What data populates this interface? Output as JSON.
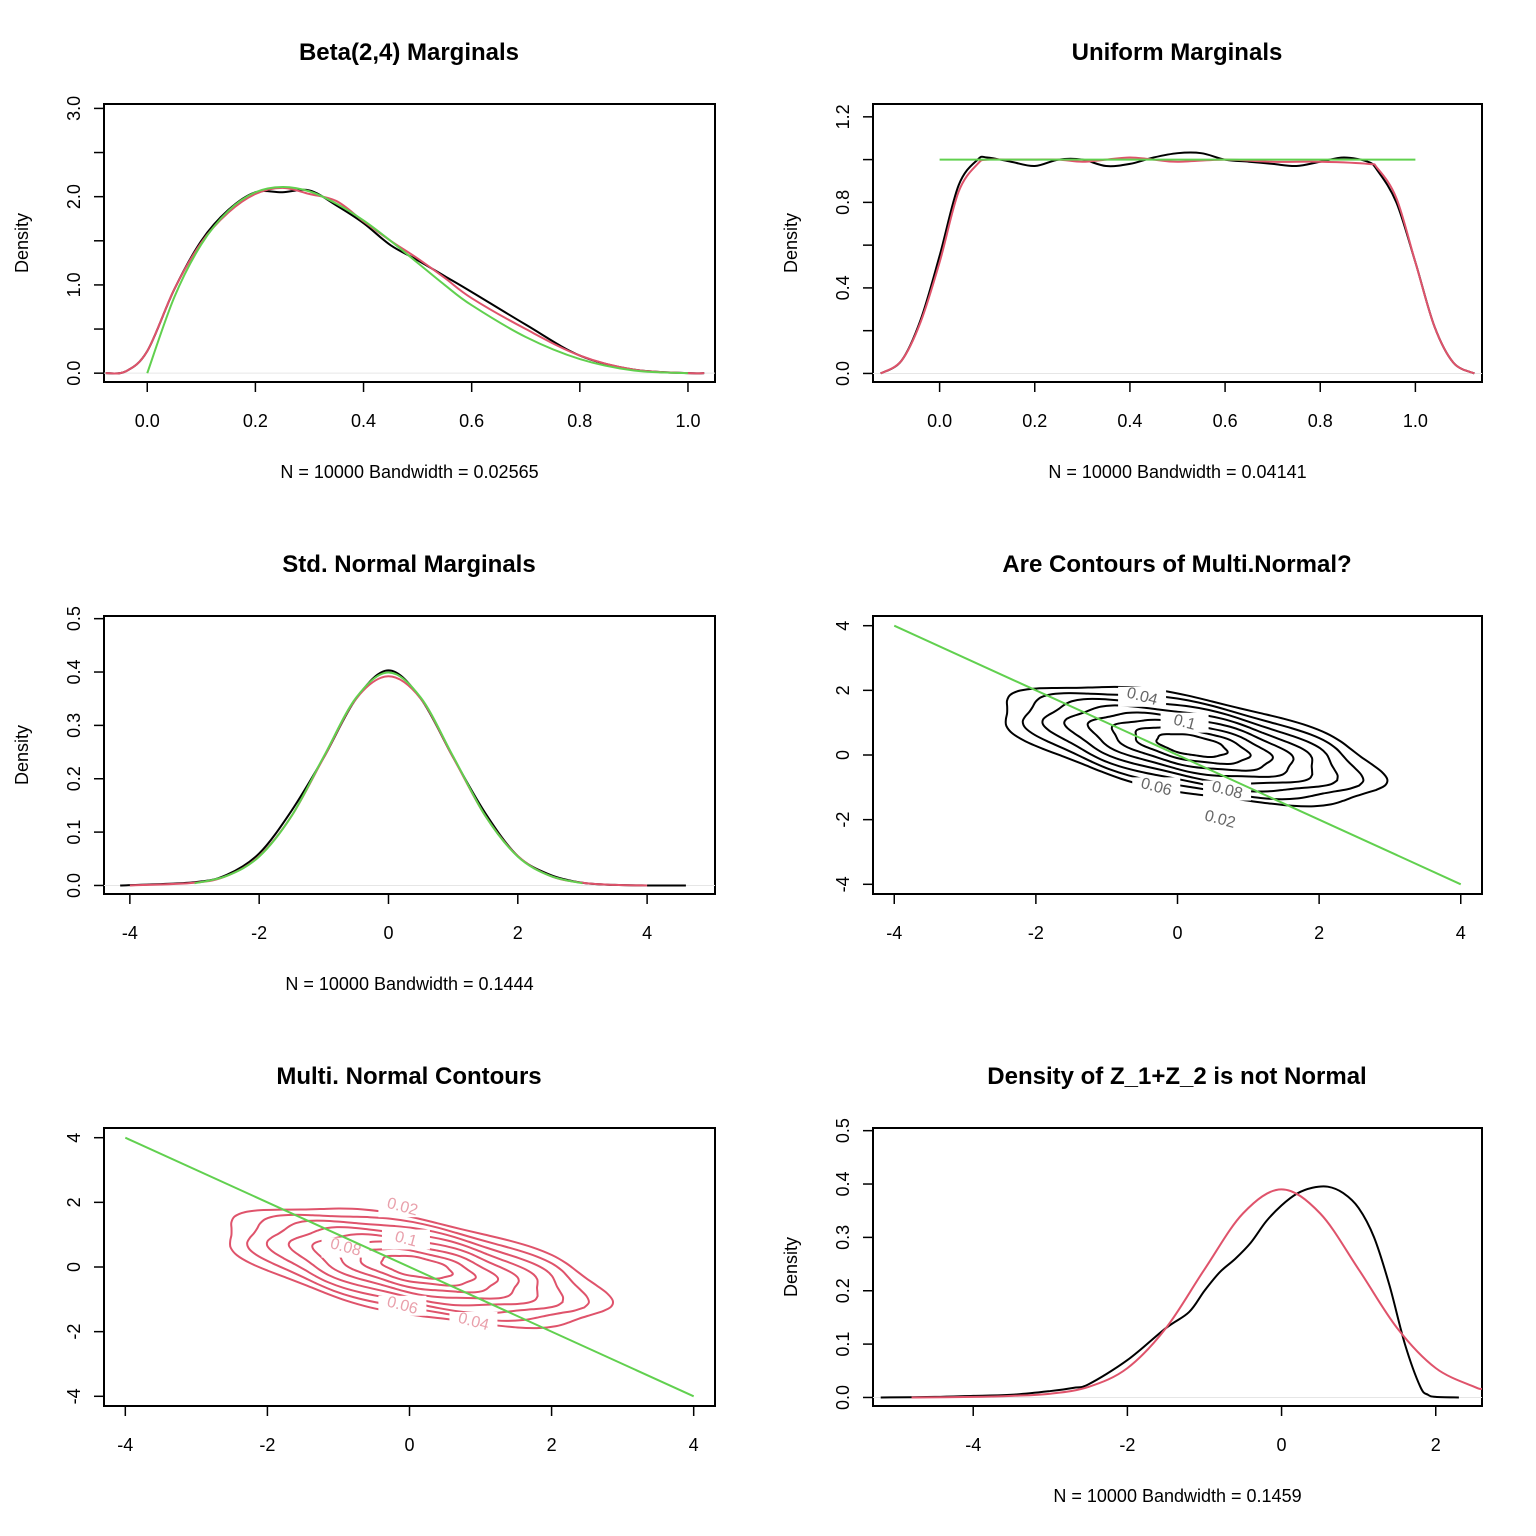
{
  "colors": {
    "kde": "#000000",
    "ref_red": "#DF536B",
    "ref_green": "#61D04F",
    "contour_label_black": "#666666",
    "contour_label_red": "#E9A0AB"
  },
  "chart_data": [
    {
      "type": "line",
      "title": "Beta(2,4) Marginals",
      "xlabel": "N = 10000   Bandwidth = 0.02565",
      "ylabel": "Density",
      "xlim": [
        -0.08,
        1.05
      ],
      "ylim": [
        -0.1,
        3.05
      ],
      "xticks": [
        "0.0",
        "0.2",
        "0.4",
        "0.6",
        "0.8",
        "1.0"
      ],
      "xtick_values": [
        0,
        0.2,
        0.4,
        0.6,
        0.8,
        1.0
      ],
      "yticks": [
        "0.0",
        "1.0",
        "2.0",
        "3.0"
      ],
      "ytick_values": [
        0,
        1,
        2,
        3
      ],
      "yminor": [
        0.5,
        1.5,
        2.5
      ],
      "series": [
        {
          "name": "kde-sample",
          "color": "kde",
          "x": [
            -0.077,
            -0.04,
            0,
            0.05,
            0.1,
            0.15,
            0.2,
            0.25,
            0.3,
            0.35,
            0.4,
            0.45,
            0.5,
            0.55,
            0.6,
            0.7,
            0.8,
            0.9,
            1.0,
            1.03
          ],
          "y": [
            0,
            0.02,
            0.25,
            0.95,
            1.5,
            1.85,
            2.05,
            2.05,
            2.07,
            1.9,
            1.7,
            1.45,
            1.28,
            1.1,
            0.92,
            0.55,
            0.2,
            0.04,
            0,
            0
          ]
        },
        {
          "name": "kde-reference",
          "color": "ref_red",
          "x": [
            -0.077,
            -0.04,
            0,
            0.05,
            0.1,
            0.15,
            0.2,
            0.25,
            0.3,
            0.35,
            0.4,
            0.45,
            0.5,
            0.55,
            0.6,
            0.7,
            0.8,
            0.9,
            1.0,
            1.03
          ],
          "y": [
            0,
            0.02,
            0.25,
            0.95,
            1.48,
            1.82,
            2.03,
            2.1,
            2.03,
            1.95,
            1.72,
            1.5,
            1.3,
            1.08,
            0.85,
            0.5,
            0.2,
            0.04,
            0,
            0
          ]
        },
        {
          "name": "beta-density",
          "color": "ref_green",
          "x": [
            0,
            0.05,
            0.1,
            0.15,
            0.2,
            0.25,
            0.3,
            0.35,
            0.4,
            0.45,
            0.5,
            0.55,
            0.6,
            0.7,
            0.8,
            0.9,
            1.0
          ],
          "y": [
            0,
            0.86,
            1.46,
            1.84,
            2.05,
            2.11,
            2.06,
            1.92,
            1.73,
            1.5,
            1.25,
            1.0,
            0.77,
            0.41,
            0.16,
            0.03,
            0
          ]
        }
      ]
    },
    {
      "type": "line",
      "title": "Uniform Marginals",
      "xlabel": "N = 10000   Bandwidth = 0.04141",
      "ylabel": "Density",
      "xlim": [
        -0.14,
        1.14
      ],
      "ylim": [
        -0.04,
        1.26
      ],
      "xticks": [
        "0.0",
        "0.2",
        "0.4",
        "0.6",
        "0.8",
        "1.0"
      ],
      "xtick_values": [
        0,
        0.2,
        0.4,
        0.6,
        0.8,
        1.0
      ],
      "yticks": [
        "0.0",
        "0.4",
        "0.8",
        "1.2"
      ],
      "ytick_values": [
        0,
        0.4,
        0.8,
        1.2
      ],
      "yminor": [
        0.2,
        0.6,
        1.0
      ],
      "series": [
        {
          "name": "kde-sample",
          "color": "kde",
          "x": [
            -0.124,
            -0.08,
            -0.04,
            0,
            0.04,
            0.08,
            0.1,
            0.15,
            0.2,
            0.25,
            0.3,
            0.35,
            0.4,
            0.45,
            0.5,
            0.55,
            0.6,
            0.65,
            0.7,
            0.75,
            0.8,
            0.85,
            0.9,
            0.92,
            0.96,
            1.0,
            1.04,
            1.08,
            1.124
          ],
          "y": [
            0,
            0.06,
            0.25,
            0.55,
            0.88,
            1.0,
            1.01,
            0.99,
            0.97,
            1.0,
            1.0,
            0.97,
            0.98,
            1.01,
            1.03,
            1.03,
            1.0,
            0.99,
            0.98,
            0.97,
            0.99,
            1.01,
            0.99,
            0.95,
            0.8,
            0.52,
            0.22,
            0.05,
            0
          ]
        },
        {
          "name": "kde-reference",
          "color": "ref_red",
          "x": [
            -0.124,
            -0.08,
            -0.04,
            0,
            0.04,
            0.08,
            0.1,
            0.15,
            0.2,
            0.25,
            0.3,
            0.35,
            0.4,
            0.45,
            0.5,
            0.6,
            0.7,
            0.8,
            0.9,
            0.92,
            0.96,
            1.0,
            1.04,
            1.08,
            1.124
          ],
          "y": [
            0,
            0.06,
            0.24,
            0.52,
            0.85,
            0.98,
            1.0,
            1.0,
            1.0,
            1.0,
            0.99,
            1.0,
            1.01,
            1.0,
            0.99,
            1.0,
            0.99,
            0.99,
            0.98,
            0.96,
            0.82,
            0.52,
            0.22,
            0.05,
            0
          ]
        },
        {
          "name": "uniform-density",
          "color": "ref_green",
          "x": [
            0,
            1
          ],
          "y": [
            1,
            1
          ]
        }
      ]
    },
    {
      "type": "line",
      "title": "Std. Normal Marginals",
      "xlabel": "N = 10000   Bandwidth = 0.1444",
      "ylabel": "Density",
      "xlim": [
        -4.4,
        5.05
      ],
      "ylim": [
        -0.016,
        0.505
      ],
      "xticks": [
        "-4",
        "-2",
        "0",
        "2",
        "4"
      ],
      "xtick_values": [
        -4,
        -2,
        0,
        2,
        4
      ],
      "yticks": [
        "0.0",
        "0.1",
        "0.2",
        "0.3",
        "0.4",
        "0.5"
      ],
      "ytick_values": [
        0,
        0.1,
        0.2,
        0.3,
        0.4,
        0.5
      ],
      "yminor": [],
      "series": [
        {
          "name": "kde-sample",
          "color": "kde",
          "x": [
            -4.15,
            -3,
            -2.5,
            -2,
            -1.5,
            -1,
            -0.5,
            0,
            0.5,
            1,
            1.5,
            2,
            2.5,
            3,
            3.5,
            4,
            4.6
          ],
          "y": [
            0,
            0.006,
            0.02,
            0.06,
            0.14,
            0.24,
            0.35,
            0.403,
            0.35,
            0.24,
            0.135,
            0.055,
            0.02,
            0.005,
            0.001,
            0,
            0
          ]
        },
        {
          "name": "kde-reference",
          "color": "ref_red",
          "x": [
            -4,
            -3,
            -2.5,
            -2,
            -1.5,
            -1,
            -0.5,
            0,
            0.5,
            1,
            1.5,
            2,
            2.5,
            3,
            3.5,
            4
          ],
          "y": [
            0,
            0.005,
            0.018,
            0.055,
            0.13,
            0.24,
            0.35,
            0.392,
            0.35,
            0.24,
            0.13,
            0.055,
            0.018,
            0.005,
            0.001,
            0
          ]
        },
        {
          "name": "normal-density",
          "color": "ref_green",
          "x": [
            -3,
            -2.5,
            -2,
            -1.5,
            -1,
            -0.5,
            0,
            0.5,
            1,
            1.5,
            2,
            2.5,
            3
          ],
          "y": [
            0.004,
            0.018,
            0.054,
            0.13,
            0.242,
            0.352,
            0.399,
            0.352,
            0.242,
            0.13,
            0.054,
            0.018,
            0.004
          ]
        }
      ]
    },
    {
      "type": "contour",
      "title": "Are Contours of Multi.Normal?",
      "xlabel": "",
      "ylabel": "",
      "xlim": [
        -4.3,
        4.3
      ],
      "ylim": [
        -4.3,
        4.3
      ],
      "xticks": [
        "-4",
        "-2",
        "0",
        "2",
        "4"
      ],
      "xtick_values": [
        -4,
        -2,
        0,
        2,
        4
      ],
      "yticks": [
        "-4",
        "-2",
        "0",
        "2",
        "4"
      ],
      "ytick_values": [
        -4,
        -2,
        0,
        2,
        4
      ],
      "yminor": [],
      "line_color": "kde",
      "label_color": "contour_label_black",
      "center": [
        0.2,
        0.3
      ],
      "levels": [
        0.02,
        0.04,
        0.06,
        0.08,
        0.1,
        0.12,
        0.14,
        0.16
      ],
      "labels": [
        {
          "text": "0.04",
          "x": -0.5,
          "y": 1.8
        },
        {
          "text": "0.1",
          "x": 0.1,
          "y": 1.0
        },
        {
          "text": "0.06",
          "x": -0.3,
          "y": -1.0
        },
        {
          "text": "0.08",
          "x": 0.7,
          "y": -1.1
        },
        {
          "text": "0.02",
          "x": 0.6,
          "y": -2.0
        }
      ],
      "line": {
        "color": "ref_green",
        "x": [
          -4,
          4
        ],
        "y": [
          4,
          -4
        ]
      }
    },
    {
      "type": "contour",
      "title": "Multi. Normal Contours",
      "xlabel": "",
      "ylabel": "",
      "xlim": [
        -4.3,
        4.3
      ],
      "ylim": [
        -4.3,
        4.3
      ],
      "xticks": [
        "-4",
        "-2",
        "0",
        "2",
        "4"
      ],
      "xtick_values": [
        -4,
        -2,
        0,
        2,
        4
      ],
      "yticks": [
        "-4",
        "-2",
        "0",
        "2",
        "4"
      ],
      "ytick_values": [
        -4,
        -2,
        0,
        2,
        4
      ],
      "yminor": [],
      "line_color": "ref_red",
      "label_color": "contour_label_red",
      "center": [
        0.1,
        0.0
      ],
      "levels": [
        0.02,
        0.04,
        0.06,
        0.08,
        0.1,
        0.12,
        0.14,
        0.16
      ],
      "labels": [
        {
          "text": "0.02",
          "x": -0.1,
          "y": 1.85
        },
        {
          "text": "0.1",
          "x": -0.05,
          "y": 0.85
        },
        {
          "text": "0.08",
          "x": -0.9,
          "y": 0.6
        },
        {
          "text": "0.06",
          "x": -0.1,
          "y": -1.2
        },
        {
          "text": "0.04",
          "x": 0.9,
          "y": -1.7
        }
      ],
      "line": {
        "color": "ref_green",
        "x": [
          -4,
          4
        ],
        "y": [
          4,
          -4
        ]
      }
    },
    {
      "type": "line",
      "title": "Density of Z_1+Z_2 is not Normal",
      "xlabel": "N = 10000   Bandwidth = 0.1459",
      "ylabel": "Density",
      "xlim": [
        -5.3,
        2.6
      ],
      "ylim": [
        -0.016,
        0.505
      ],
      "xticks": [
        "-4",
        "-2",
        "0",
        "2"
      ],
      "xtick_values": [
        -4,
        -2,
        0,
        2
      ],
      "yticks": [
        "0.0",
        "0.1",
        "0.2",
        "0.3",
        "0.4",
        "0.5"
      ],
      "ytick_values": [
        0,
        0.1,
        0.2,
        0.3,
        0.4,
        0.5
      ],
      "yminor": [],
      "series": [
        {
          "name": "kde-sample",
          "color": "kde",
          "x": [
            -5.2,
            -4.5,
            -4,
            -3.5,
            -3,
            -2.7,
            -2.5,
            -2,
            -1.5,
            -1.2,
            -1,
            -0.8,
            -0.6,
            -0.4,
            -0.2,
            0,
            0.2,
            0.4,
            0.6,
            0.8,
            1.0,
            1.2,
            1.4,
            1.6,
            1.8,
            1.9,
            2.0,
            2.3
          ],
          "y": [
            0,
            0.001,
            0.003,
            0.005,
            0.012,
            0.018,
            0.025,
            0.07,
            0.13,
            0.16,
            0.2,
            0.235,
            0.26,
            0.29,
            0.33,
            0.36,
            0.382,
            0.393,
            0.395,
            0.383,
            0.355,
            0.3,
            0.21,
            0.1,
            0.02,
            0.005,
            0.001,
            0
          ]
        },
        {
          "name": "normal-density",
          "color": "ref_red",
          "x": [
            -4.8,
            -4,
            -3.5,
            -3,
            -2.5,
            -2,
            -1.5,
            -1,
            -0.5,
            0,
            0.5,
            1,
            1.5,
            2,
            2.5,
            2.6
          ],
          "y": [
            0,
            0.001,
            0.003,
            0.007,
            0.02,
            0.055,
            0.13,
            0.24,
            0.345,
            0.39,
            0.345,
            0.24,
            0.13,
            0.055,
            0.02,
            0.016
          ]
        }
      ]
    }
  ]
}
